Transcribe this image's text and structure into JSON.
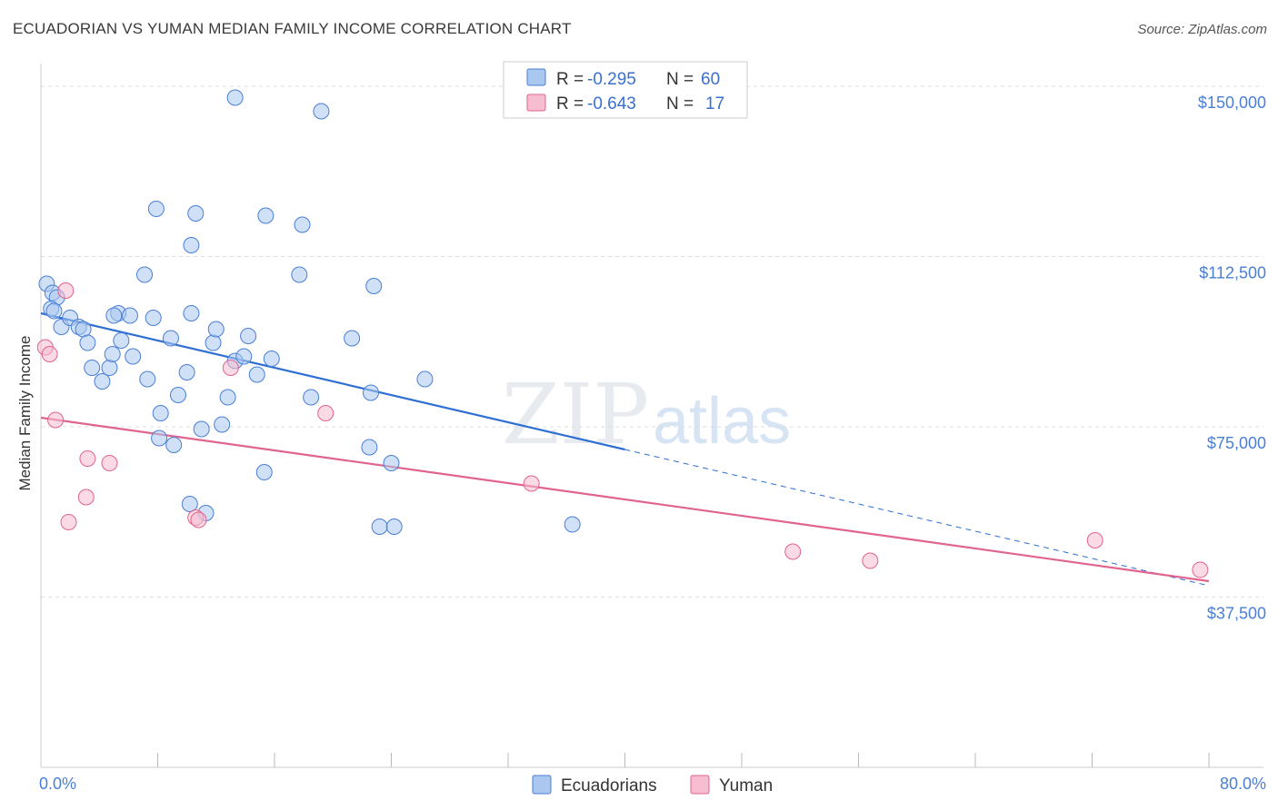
{
  "title": "ECUADORIAN VS YUMAN MEDIAN FAMILY INCOME CORRELATION CHART",
  "source": "Source: ZipAtlas.com",
  "watermark": {
    "zip": "ZIP",
    "atlas": "atlas"
  },
  "legend": {
    "rows": [
      {
        "r_label": "R =",
        "r_value": "-0.295",
        "n_label": "N =",
        "n_value": "60",
        "color": "#aac7f0"
      },
      {
        "r_label": "R =",
        "r_value": "-0.643",
        "n_label": "N =",
        "n_value": "17",
        "color": "#f6bccf"
      }
    ]
  },
  "bottom_legend": {
    "series1": "Ecuadorians",
    "series2": "Yuman"
  },
  "chart_data": {
    "type": "scatter",
    "title": "ECUADORIAN VS YUMAN MEDIAN FAMILY INCOME CORRELATION CHART",
    "xlabel": "",
    "ylabel": "Median Family Income",
    "xlim": [
      0,
      80
    ],
    "ylim": [
      0,
      155000
    ],
    "x_tick_labels": [
      "0.0%",
      "80.0%"
    ],
    "y_ticks": [
      37500,
      75000,
      112500,
      150000
    ],
    "y_tick_labels": [
      "$37,500",
      "$75,000",
      "$112,500",
      "$150,000"
    ],
    "series": [
      {
        "name": "Ecuadorians",
        "color": "#4a7fd6",
        "fill": "#aac7f0",
        "points": [
          [
            0.4,
            106500
          ],
          [
            0.8,
            104500
          ],
          [
            1.1,
            103500
          ],
          [
            0.7,
            101000
          ],
          [
            0.9,
            100500
          ],
          [
            1.4,
            97000
          ],
          [
            2.0,
            99000
          ],
          [
            2.6,
            97000
          ],
          [
            2.9,
            96500
          ],
          [
            3.2,
            93500
          ],
          [
            3.5,
            88000
          ],
          [
            4.2,
            85000
          ],
          [
            4.7,
            88000
          ],
          [
            4.9,
            91000
          ],
          [
            5.3,
            100000
          ],
          [
            5.0,
            99500
          ],
          [
            5.5,
            94000
          ],
          [
            6.1,
            99500
          ],
          [
            6.3,
            90500
          ],
          [
            7.1,
            108500
          ],
          [
            7.3,
            85500
          ],
          [
            7.7,
            99000
          ],
          [
            8.1,
            72500
          ],
          [
            8.2,
            78000
          ],
          [
            8.9,
            94500
          ],
          [
            9.1,
            71000
          ],
          [
            9.4,
            82000
          ],
          [
            10.0,
            87000
          ],
          [
            10.3,
            115000
          ],
          [
            10.6,
            122000
          ],
          [
            10.2,
            58000
          ],
          [
            11.0,
            74500
          ],
          [
            11.3,
            56000
          ],
          [
            11.8,
            93500
          ],
          [
            12.0,
            96500
          ],
          [
            12.4,
            75500
          ],
          [
            12.8,
            81500
          ],
          [
            13.3,
            89500
          ],
          [
            13.9,
            90500
          ],
          [
            13.3,
            147500
          ],
          [
            14.2,
            95000
          ],
          [
            14.8,
            86500
          ],
          [
            15.3,
            65000
          ],
          [
            15.4,
            121500
          ],
          [
            15.8,
            90000
          ],
          [
            17.7,
            108500
          ],
          [
            17.9,
            119500
          ],
          [
            18.5,
            81500
          ],
          [
            19.2,
            144500
          ],
          [
            21.3,
            94500
          ],
          [
            22.6,
            82500
          ],
          [
            22.5,
            70500
          ],
          [
            23.2,
            53000
          ],
          [
            24.0,
            67000
          ],
          [
            24.2,
            53000
          ],
          [
            22.8,
            106000
          ],
          [
            26.3,
            85500
          ],
          [
            36.4,
            53500
          ],
          [
            7.9,
            123000
          ],
          [
            10.3,
            100000
          ]
        ]
      },
      {
        "name": "Yuman",
        "color": "#e0648f",
        "fill": "#f6bccf",
        "points": [
          [
            0.3,
            92500
          ],
          [
            0.6,
            91000
          ],
          [
            1.0,
            76500
          ],
          [
            1.7,
            105000
          ],
          [
            1.9,
            54000
          ],
          [
            3.1,
            59500
          ],
          [
            3.2,
            68000
          ],
          [
            4.7,
            67000
          ],
          [
            10.6,
            55000
          ],
          [
            10.8,
            54500
          ],
          [
            13.0,
            88000
          ],
          [
            19.5,
            78000
          ],
          [
            33.6,
            62500
          ],
          [
            51.5,
            47500
          ],
          [
            56.8,
            45500
          ],
          [
            72.2,
            50000
          ],
          [
            79.4,
            43500
          ]
        ]
      }
    ],
    "trendlines": [
      {
        "series": "Ecuadorians",
        "x0": 0,
        "y0": 100000,
        "x1": 40,
        "y1": 70000,
        "dashed_extension_to_x": 80,
        "dashed_extension_y": 40000
      },
      {
        "series": "Yuman",
        "x0": 0,
        "y0": 77000,
        "x1": 80,
        "y1": 41000
      }
    ],
    "grid": true
  }
}
